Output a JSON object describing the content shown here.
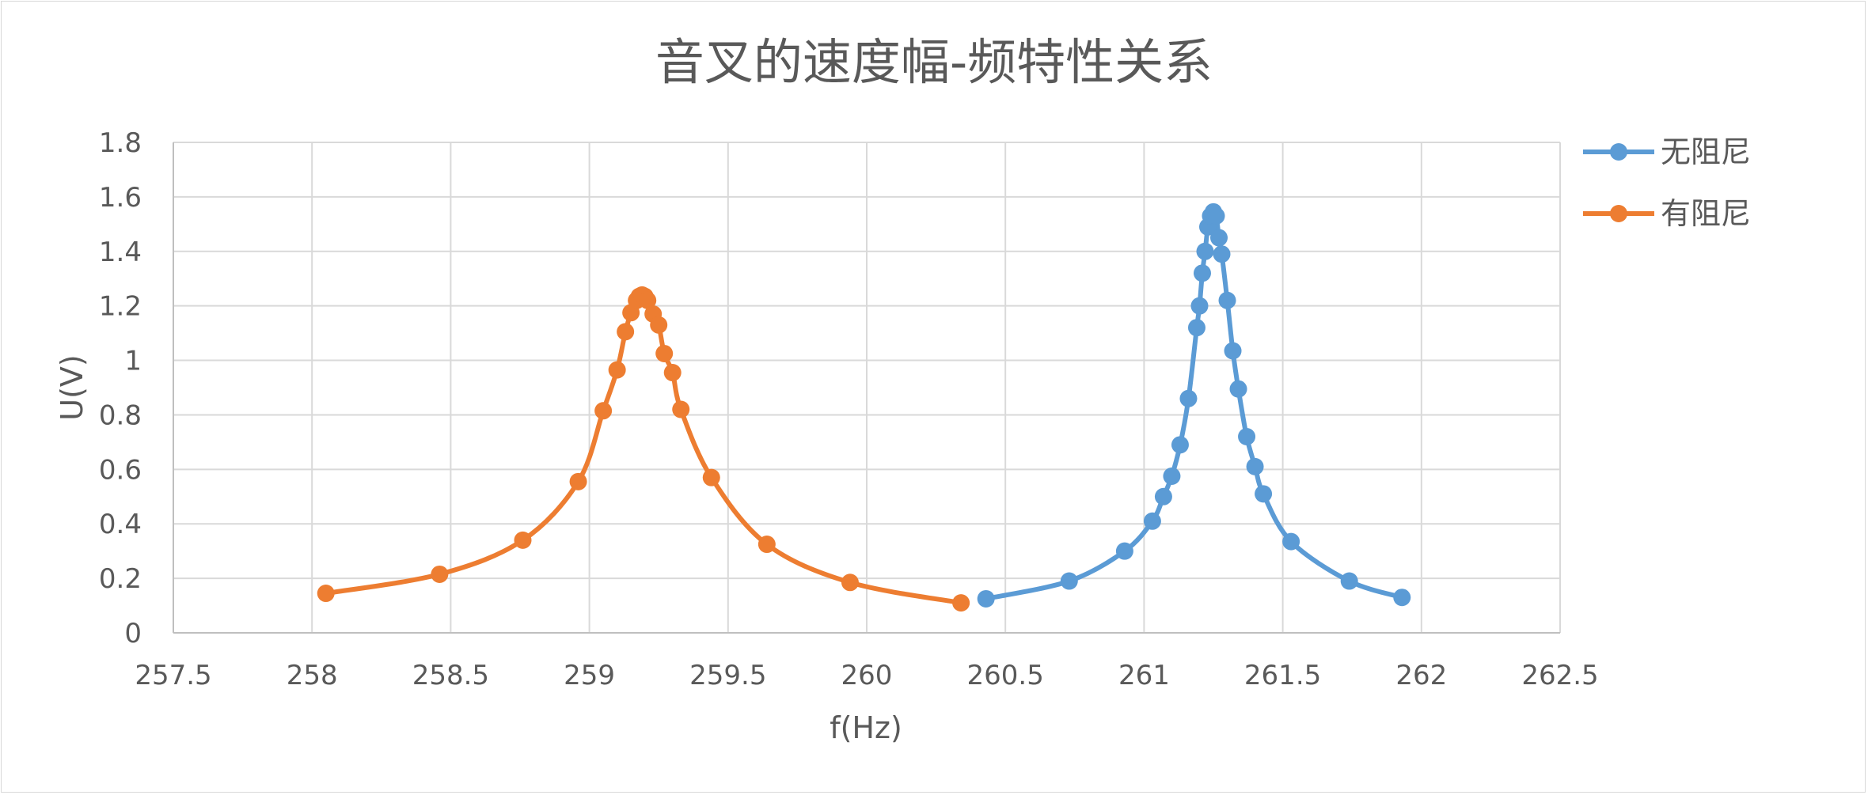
{
  "chart_data": {
    "type": "scatter",
    "title": "音叉的速度幅-频特性关系",
    "xlabel": "f(Hz)",
    "ylabel": "U(V)",
    "xlim": [
      257.5,
      262.5
    ],
    "ylim": [
      0,
      1.8
    ],
    "x_ticks": [
      "257.5",
      "258",
      "258.5",
      "259",
      "259.5",
      "260",
      "260.5",
      "261",
      "261.5",
      "262",
      "262.5"
    ],
    "y_ticks": [
      "0",
      "0.2",
      "0.4",
      "0.6",
      "0.8",
      "1",
      "1.2",
      "1.4",
      "1.6",
      "1.8"
    ],
    "grid": true,
    "legend_position": "right-top",
    "series": [
      {
        "name": "无阻尼",
        "color": "#5B9BD5",
        "points": [
          [
            260.43,
            0.125
          ],
          [
            260.73,
            0.19
          ],
          [
            260.93,
            0.3
          ],
          [
            261.03,
            0.41
          ],
          [
            261.07,
            0.5
          ],
          [
            261.1,
            0.575
          ],
          [
            261.13,
            0.69
          ],
          [
            261.16,
            0.86
          ],
          [
            261.19,
            1.12
          ],
          [
            261.2,
            1.2
          ],
          [
            261.21,
            1.32
          ],
          [
            261.22,
            1.4
          ],
          [
            261.23,
            1.49
          ],
          [
            261.24,
            1.53
          ],
          [
            261.25,
            1.545
          ],
          [
            261.26,
            1.53
          ],
          [
            261.27,
            1.45
          ],
          [
            261.28,
            1.39
          ],
          [
            261.3,
            1.22
          ],
          [
            261.32,
            1.035
          ],
          [
            261.34,
            0.895
          ],
          [
            261.37,
            0.72
          ],
          [
            261.4,
            0.61
          ],
          [
            261.43,
            0.51
          ],
          [
            261.53,
            0.335
          ],
          [
            261.74,
            0.19
          ],
          [
            261.93,
            0.13
          ]
        ]
      },
      {
        "name": "有阻尼",
        "color": "#ED7D31",
        "points": [
          [
            258.05,
            0.145
          ],
          [
            258.46,
            0.215
          ],
          [
            258.76,
            0.34
          ],
          [
            258.96,
            0.555
          ],
          [
            259.05,
            0.815
          ],
          [
            259.1,
            0.965
          ],
          [
            259.13,
            1.105
          ],
          [
            259.15,
            1.175
          ],
          [
            259.17,
            1.22
          ],
          [
            259.18,
            1.235
          ],
          [
            259.19,
            1.24
          ],
          [
            259.2,
            1.235
          ],
          [
            259.21,
            1.22
          ],
          [
            259.23,
            1.17
          ],
          [
            259.25,
            1.13
          ],
          [
            259.27,
            1.025
          ],
          [
            259.3,
            0.955
          ],
          [
            259.33,
            0.82
          ],
          [
            259.44,
            0.57
          ],
          [
            259.64,
            0.325
          ],
          [
            259.94,
            0.185
          ],
          [
            260.34,
            0.11
          ]
        ]
      }
    ]
  }
}
